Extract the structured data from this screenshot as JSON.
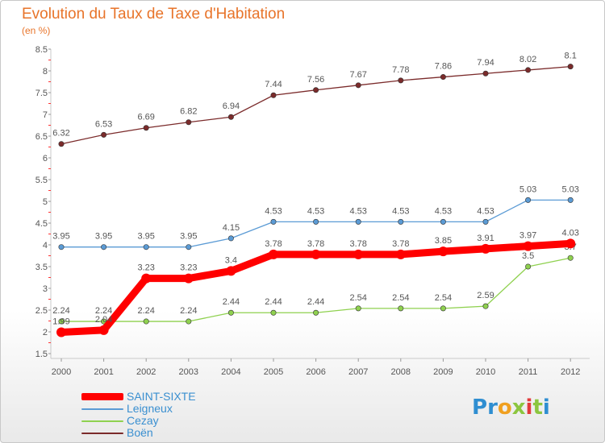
{
  "chart_data": {
    "type": "line",
    "title": "Evolution du Taux de Taxe d'Habitation",
    "subtitle": "(en %)",
    "x": [
      "2000",
      "2001",
      "2002",
      "2003",
      "2004",
      "2005",
      "2006",
      "2007",
      "2008",
      "2009",
      "2010",
      "2011",
      "2012"
    ],
    "ylim": [
      1.5,
      8.5
    ],
    "yticks": [
      "1.5",
      "2",
      "2.5",
      "3",
      "3.5",
      "4",
      "4.5",
      "5",
      "5.5",
      "6",
      "6.5",
      "7",
      "7.5",
      "8",
      "8.5"
    ],
    "grid": false,
    "legend_position": "bottom-left",
    "series": [
      {
        "name": "SAINT-SIXTE",
        "color": "#ff0000",
        "values": [
          1.99,
          2.04,
          3.23,
          3.23,
          3.4,
          3.78,
          3.78,
          3.78,
          3.78,
          3.85,
          3.91,
          3.97,
          4.03
        ],
        "labels": [
          "1.99",
          "2.04",
          "3.23",
          "3.23",
          "3.4",
          "3.78",
          "3.78",
          "3.78",
          "3.78",
          "3.85",
          "3.91",
          "3.97",
          "4.03"
        ]
      },
      {
        "name": "Leigneux",
        "color": "#5b9bd5",
        "values": [
          3.95,
          3.95,
          3.95,
          3.95,
          4.15,
          4.53,
          4.53,
          4.53,
          4.53,
          4.53,
          4.53,
          5.03,
          5.03
        ],
        "labels": [
          "3.95",
          "3.95",
          "3.95",
          "3.95",
          "4.15",
          "4.53",
          "4.53",
          "4.53",
          "4.53",
          "4.53",
          "4.53",
          "5.03",
          "5.03"
        ]
      },
      {
        "name": "Cezay",
        "color": "#8fd14f",
        "values": [
          2.24,
          2.24,
          2.24,
          2.24,
          2.44,
          2.44,
          2.44,
          2.54,
          2.54,
          2.54,
          2.59,
          3.5,
          3.7
        ],
        "labels": [
          "2.24",
          "2.24",
          "2.24",
          "2.24",
          "2.44",
          "2.44",
          "2.44",
          "2.54",
          "2.54",
          "2.54",
          "2.59",
          "3.5",
          "3.7"
        ]
      },
      {
        "name": "Boën",
        "color": "#7b2b2b",
        "values": [
          6.32,
          6.53,
          6.69,
          6.82,
          6.94,
          7.44,
          7.56,
          7.67,
          7.78,
          7.86,
          7.94,
          8.02,
          8.1
        ],
        "labels": [
          "6.32",
          "6.53",
          "6.69",
          "6.82",
          "6.94",
          "7.44",
          "7.56",
          "7.67",
          "7.78",
          "7.86",
          "7.94",
          "8.02",
          "8.1"
        ]
      }
    ]
  },
  "logo": {
    "letters": [
      "P",
      "r",
      "o",
      "x",
      "i",
      "t",
      "i"
    ],
    "colors": [
      "#2f8ed1",
      "#2f8ed1",
      "#f0a020",
      "#8cc63f",
      "#e23b3b",
      "#8cc63f",
      "#2f8ed1"
    ]
  }
}
